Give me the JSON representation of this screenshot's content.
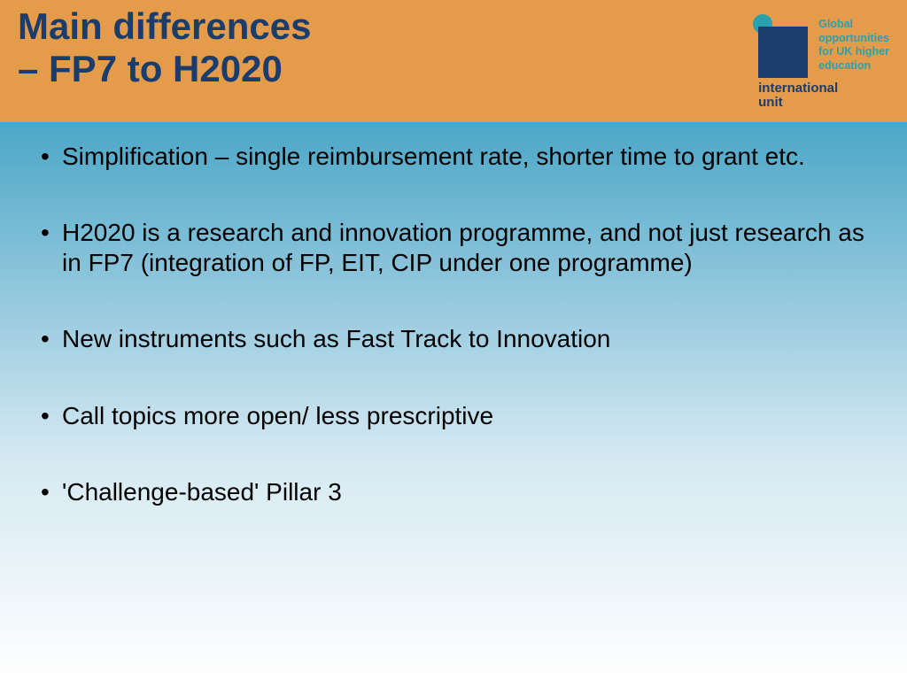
{
  "header": {
    "title_line1": "Main differences",
    "title_line2": " – FP7 to H2020",
    "title_color": "#1a3d6d",
    "background_color": "#e49b4a"
  },
  "logo": {
    "dot_color": "#2aa0b0",
    "square_color": "#1a3d6d",
    "wordmark_line1": "international",
    "wordmark_line2": "unit",
    "tagline_line1": "Global",
    "tagline_line2": "opportunities",
    "tagline_line3": "for UK higher",
    "tagline_line4": "education",
    "tagline_color": "#2aa0b0"
  },
  "content": {
    "background_gradient_top": "#4ba7c7",
    "background_gradient_bottom": "#ffffff",
    "bullet_fontsize": 28,
    "bullets": [
      "Simplification – single reimbursement rate, shorter time to grant etc.",
      "H2020 is a research and innovation programme, and not just research as in FP7 (integration of FP, EIT, CIP under one programme)",
      "New instruments such as Fast Track to Innovation",
      "Call topics more open/ less prescriptive",
      "'Challenge-based' Pillar 3"
    ]
  }
}
